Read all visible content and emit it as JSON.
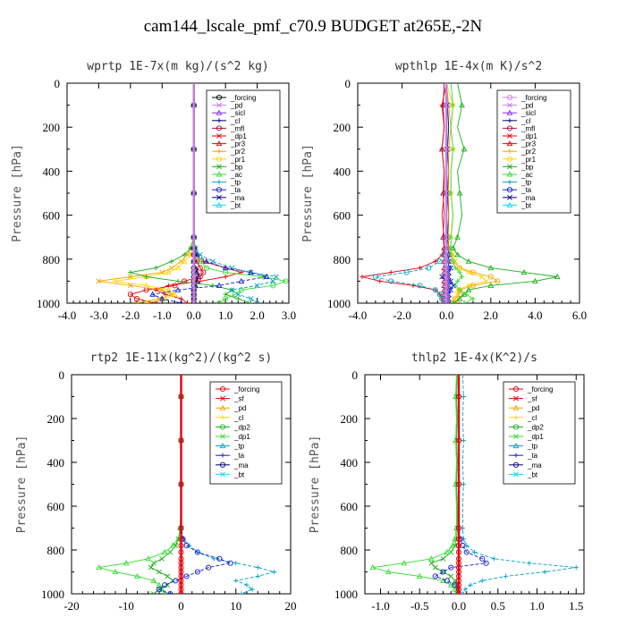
{
  "figure_title": "cam144_lscale_pmf_c70.9  BUDGET at265E,-2N",
  "colors": {
    "black": "#000000",
    "red": "#e8000b",
    "orange": "#f5a300",
    "yellow": "#ffd400",
    "green": "#1aaf1a",
    "lgreen": "#33dd33",
    "cyan": "#00a0c8",
    "blue": "#1020d0",
    "navy": "#000080",
    "aqua": "#10d8e8",
    "purple": "#8a2be2",
    "violet": "#c77fe0",
    "maroon": "#a01040",
    "teal": "#0aa0a0",
    "olive": "#a0a000"
  },
  "chart_data": [
    {
      "type": "line",
      "title": "wprtp   1E-7x(m kg)/(s^2 kg)",
      "ylabel": "Pressure [hPa]",
      "xlim": [
        -4,
        3
      ],
      "ylim": [
        1000,
        0
      ],
      "xticks": [
        -4,
        -3,
        -2,
        -1,
        0,
        1,
        2,
        3
      ],
      "xtick_labels": [
        "-4.0",
        "-3.0",
        "-2.0",
        "-1.0",
        "0.0",
        "1.0",
        "2.0",
        "3.0"
      ],
      "yticks": [
        0,
        200,
        400,
        600,
        800,
        1000
      ],
      "ytick_labels": [
        "0",
        "200",
        "400",
        "600",
        "800",
        "1000"
      ],
      "legend": [
        "_forcing",
        "_pd",
        "_sicl",
        "_cl",
        "_mfl",
        "_dp1",
        "_pr3",
        "_pr2",
        "_pr1",
        "_bp",
        "_ac",
        "_tp",
        "_ta",
        "_ma",
        "_bt"
      ],
      "legend_colors": [
        "black",
        "violet",
        "purple",
        "navy",
        "maroon",
        "red",
        "red",
        "orange",
        "yellow",
        "green",
        "lgreen",
        "cyan",
        "blue",
        "navy",
        "aqua"
      ],
      "p": [
        0,
        100,
        200,
        300,
        400,
        500,
        600,
        700,
        750,
        780,
        810,
        840,
        860,
        880,
        900,
        920,
        940,
        960,
        980,
        1000
      ],
      "series": [
        {
          "name": "_forcing",
          "color": "black",
          "values": [
            0,
            0,
            0,
            0,
            0,
            0,
            0,
            0,
            0,
            0,
            0,
            0,
            0,
            0,
            0,
            0,
            0,
            0,
            0,
            0
          ]
        },
        {
          "name": "_pd",
          "color": "violet",
          "values": [
            0,
            0,
            0,
            0,
            0,
            0,
            0,
            0,
            0,
            0,
            0,
            0,
            0,
            0,
            0,
            0,
            0,
            0,
            0,
            0
          ]
        },
        {
          "name": "_cl",
          "color": "navy",
          "values": [
            0,
            0,
            0,
            0,
            0,
            0,
            0,
            0,
            0,
            0,
            0,
            0.05,
            0.1,
            0.15,
            0.1,
            0.05,
            0,
            0,
            0,
            0
          ]
        },
        {
          "name": "_dp1",
          "color": "red",
          "values": [
            0,
            0,
            0,
            0,
            0,
            0,
            0,
            0,
            0,
            0.05,
            0.3,
            1.0,
            1.5,
            1.0,
            0.2,
            -0.8,
            -1.2,
            -0.9,
            -0.4,
            -0.2
          ]
        },
        {
          "name": "_pr3",
          "color": "red",
          "values": [
            0,
            0,
            0,
            0,
            0,
            0,
            0,
            0,
            0,
            0.02,
            0.1,
            0.2,
            0.3,
            0.2,
            -0.3,
            -0.6,
            -1.5,
            -2.0,
            -1.8,
            -1.2
          ]
        },
        {
          "name": "_pr2",
          "color": "orange",
          "values": [
            0,
            0,
            0,
            0,
            0,
            0,
            0,
            0,
            -0.1,
            -0.2,
            -0.4,
            -0.7,
            -1.0,
            -2.0,
            -3.0,
            -2.0,
            -1.0,
            -0.7,
            -1.1,
            -1.8
          ]
        },
        {
          "name": "_pr1",
          "color": "yellow",
          "values": [
            0,
            0,
            0,
            0,
            0,
            0,
            0,
            0,
            -0.05,
            -0.1,
            -0.3,
            -0.5,
            -0.8,
            -1.5,
            -2.5,
            -1.5,
            -0.8,
            -0.6,
            -0.9,
            -1.5
          ]
        },
        {
          "name": "_bp",
          "color": "green",
          "values": [
            0,
            0,
            0,
            0,
            0,
            0,
            0,
            0,
            -0.1,
            -0.3,
            -0.7,
            -1.2,
            -2.0,
            -1.5,
            -0.5,
            0.6,
            1.2,
            1.0,
            1.4,
            1.8
          ]
        },
        {
          "name": "_ac",
          "color": "lgreen",
          "values": [
            0,
            0,
            0,
            0,
            0,
            0,
            0,
            0,
            0.05,
            0.1,
            0.2,
            0.4,
            1.0,
            2.2,
            2.9,
            2.5,
            1.5,
            1.3,
            1.0,
            0.8
          ]
        },
        {
          "name": "_tp",
          "color": "cyan",
          "values": [
            0,
            0,
            0,
            0,
            0,
            0,
            0,
            0,
            0.05,
            0.2,
            0.6,
            1.2,
            1.8,
            2.6,
            2.5,
            2.0,
            1.2,
            1.4,
            1.8,
            2.0
          ]
        },
        {
          "name": "_ta",
          "color": "blue",
          "values": [
            0,
            0,
            0,
            0,
            0,
            0,
            0,
            0,
            0,
            0.1,
            0.4,
            1.0,
            1.8,
            2.3,
            1.5,
            0.8,
            -0.5,
            -1.3,
            -1.0,
            -0.4
          ]
        }
      ]
    },
    {
      "type": "line",
      "title": "wpthlp   1E-4x(m K)/s^2",
      "ylabel": "Pressure [hPa]",
      "xlim": [
        -4,
        6
      ],
      "ylim": [
        1000,
        0
      ],
      "xticks": [
        -4,
        -2,
        0,
        2,
        4,
        6
      ],
      "xtick_labels": [
        "-4.0",
        "-2.0",
        "0.0",
        "2.0",
        "4.0",
        "6.0"
      ],
      "yticks": [
        0,
        200,
        400,
        600,
        800,
        1000
      ],
      "ytick_labels": [
        "0",
        "200",
        "400",
        "600",
        "800",
        "1000"
      ],
      "legend": [
        "_forcing",
        "_pd",
        "_sicl",
        "_cl",
        "_mfl",
        "_dp1",
        "_pr3",
        "_pr2",
        "_pr1",
        "_bp",
        "_ac",
        "_tp",
        "_ta",
        "_ma",
        "_bt"
      ],
      "legend_colors": [
        "violet",
        "violet",
        "purple",
        "navy",
        "maroon",
        "red",
        "red",
        "orange",
        "yellow",
        "green",
        "lgreen",
        "cyan",
        "blue",
        "navy",
        "aqua"
      ],
      "p": [
        0,
        100,
        200,
        300,
        400,
        500,
        600,
        700,
        750,
        780,
        810,
        840,
        860,
        880,
        900,
        920,
        940,
        960,
        980,
        1000
      ],
      "series": [
        {
          "name": "_forcing",
          "color": "violet",
          "values": [
            0,
            0,
            0,
            0,
            0,
            0,
            0,
            0,
            0,
            0,
            0,
            0,
            0,
            0,
            0,
            0,
            0,
            0,
            0,
            0
          ]
        },
        {
          "name": "_cl",
          "color": "navy",
          "values": [
            0,
            0.05,
            0.1,
            0.05,
            0.1,
            0.05,
            0.1,
            0.05,
            0.1,
            0.1,
            0.1,
            0.1,
            0.1,
            0.1,
            0.1,
            0.1,
            0.1,
            0.1,
            0.1,
            0.1
          ]
        },
        {
          "name": "_mfl",
          "color": "maroon",
          "values": [
            -0.1,
            -0.15,
            -0.1,
            -0.2,
            -0.1,
            -0.15,
            -0.1,
            -0.15,
            -0.1,
            -0.1,
            -0.1,
            -0.1,
            -0.1,
            -0.1,
            -0.1,
            -0.1,
            -0.1,
            -0.1,
            -0.1,
            -0.1
          ]
        },
        {
          "name": "_dp1",
          "color": "red",
          "values": [
            0,
            -0.2,
            -0.1,
            -0.2,
            -0.1,
            -0.1,
            -0.2,
            -0.1,
            -0.1,
            -0.2,
            -0.5,
            -1.2,
            -2.5,
            -3.8,
            -3.0,
            -1.5,
            -0.5,
            -0.3,
            -0.2,
            -0.2
          ]
        },
        {
          "name": "_pr2",
          "color": "orange",
          "values": [
            0,
            0.1,
            0.2,
            0.1,
            0.1,
            0.1,
            0.1,
            0.1,
            0.1,
            0.2,
            0.3,
            0.6,
            1.2,
            2.0,
            2.3,
            1.2,
            0.6,
            0.6,
            0.4,
            0.5
          ]
        },
        {
          "name": "_pr1",
          "color": "yellow",
          "values": [
            0,
            0.3,
            0.2,
            0.3,
            0.2,
            0.2,
            0.3,
            0.2,
            0.2,
            0.3,
            0.4,
            0.6,
            1.0,
            1.6,
            1.8,
            1.0,
            0.5,
            0.5,
            0.3,
            0.3
          ]
        },
        {
          "name": "_bp",
          "color": "green",
          "values": [
            0.5,
            0.7,
            0.5,
            0.8,
            0.5,
            0.6,
            0.7,
            0.5,
            0.3,
            0.5,
            1.0,
            2.0,
            3.5,
            5.0,
            4.0,
            2.0,
            1.0,
            0.8,
            0.6,
            0.3
          ]
        },
        {
          "name": "_ac",
          "color": "lgreen",
          "values": [
            0.2,
            0.3,
            0.2,
            0.3,
            0.2,
            0.2,
            0.3,
            0.2,
            0.2,
            0.2,
            0.3,
            0.4,
            0.6,
            0.7,
            0.5,
            0.4,
            0.6,
            0.9,
            1.2,
            0.8
          ]
        },
        {
          "name": "_tp",
          "color": "cyan",
          "values": [
            0,
            0,
            0,
            0,
            0,
            0,
            0,
            0,
            0,
            -0.1,
            -0.3,
            -0.8,
            -1.8,
            -3.2,
            -2.5,
            -1.2,
            -0.5,
            -0.3,
            -0.2,
            -0.1
          ]
        },
        {
          "name": "_ta",
          "color": "blue",
          "values": [
            0,
            0,
            0,
            0,
            0,
            0,
            0,
            0,
            0,
            0.05,
            0.1,
            0.2,
            0.1,
            -0.2,
            0.2,
            0.3,
            0.2,
            0.1,
            0.1,
            0
          ]
        }
      ]
    },
    {
      "type": "line",
      "title": "rtp2   1E-11x(kg^2)/(kg^2 s)",
      "ylabel": "Pressure [hPa]",
      "xlim": [
        -20,
        20
      ],
      "ylim": [
        1000,
        0
      ],
      "xticks": [
        -20,
        -10,
        0,
        10,
        20
      ],
      "xtick_labels": [
        "-20",
        "-10",
        "0",
        "10",
        "20"
      ],
      "yticks": [
        0,
        200,
        400,
        600,
        800,
        1000
      ],
      "ytick_labels": [
        "0",
        "200",
        "400",
        "600",
        "800",
        "1000"
      ],
      "legend": [
        "_forcing",
        "_sf",
        "_pd",
        "_cl",
        "_dp2",
        "_dp1",
        "_tp",
        "_ta",
        "_ma",
        "_bt"
      ],
      "legend_colors": [
        "red",
        "red",
        "orange",
        "yellow",
        "green",
        "lgreen",
        "cyan",
        "blue",
        "navy",
        "aqua"
      ],
      "p": [
        0,
        100,
        200,
        300,
        400,
        500,
        600,
        700,
        750,
        780,
        810,
        840,
        860,
        880,
        900,
        920,
        940,
        960,
        980,
        1000
      ],
      "series": [
        {
          "name": "_forcing",
          "color": "red",
          "values": [
            0,
            0,
            0,
            0,
            0,
            0,
            0,
            0,
            0,
            0,
            0,
            0,
            0,
            0,
            0,
            0,
            0,
            0,
            0,
            0
          ]
        },
        {
          "name": "_dp2",
          "color": "green",
          "values": [
            0,
            0,
            0,
            0,
            0,
            0,
            0,
            0,
            -0.5,
            -1.0,
            -2.0,
            -3.5,
            -5.0,
            -5.5,
            -4.0,
            -2.5,
            -1.5,
            -2.5,
            -4.0,
            -5.0
          ]
        },
        {
          "name": "_dp1",
          "color": "lgreen",
          "values": [
            0,
            0,
            0,
            0,
            0,
            0,
            0,
            -0.2,
            -0.5,
            -1.5,
            -3.0,
            -6.0,
            -10.0,
            -15.0,
            -12.0,
            -8.0,
            -5.0,
            -4.0,
            -3.5,
            -3.0
          ]
        },
        {
          "name": "_tp",
          "color": "cyan",
          "values": [
            0,
            0,
            0,
            0,
            0,
            0,
            0,
            0,
            0.5,
            1.5,
            3.0,
            6.0,
            10.0,
            14.0,
            17.0,
            14.0,
            10.0,
            12.0,
            13.0,
            11.0
          ]
        },
        {
          "name": "_ta",
          "color": "blue",
          "values": [
            0,
            0,
            0,
            0,
            0,
            0,
            0,
            0,
            0.3,
            1.0,
            3.0,
            7.0,
            9.0,
            5.0,
            3.0,
            1.0,
            -1.0,
            -3.0,
            -4.0,
            -2.0
          ]
        }
      ]
    },
    {
      "type": "line",
      "title": "thlp2   1E-4x(K^2)/s",
      "ylabel": "Pressure [hPa]",
      "xlim": [
        -1.2,
        1.6
      ],
      "ylim": [
        1000,
        0
      ],
      "xticks": [
        -1.0,
        -0.5,
        0.0,
        0.5,
        1.0,
        1.5
      ],
      "xtick_labels": [
        "-1.0",
        "-0.5",
        "0.0",
        "0.5",
        "1.0",
        "1.5"
      ],
      "yticks": [
        0,
        200,
        400,
        600,
        800,
        1000
      ],
      "ytick_labels": [
        "0",
        "200",
        "400",
        "600",
        "800",
        "1000"
      ],
      "legend": [
        "_forcing",
        "_sf",
        "_pd",
        "_cl",
        "_dp2",
        "_dp1",
        "_tp",
        "_ta",
        "_ma",
        "_bt"
      ],
      "legend_colors": [
        "red",
        "red",
        "orange",
        "yellow",
        "green",
        "lgreen",
        "cyan",
        "blue",
        "navy",
        "aqua"
      ],
      "p": [
        0,
        100,
        200,
        300,
        400,
        500,
        600,
        700,
        750,
        780,
        810,
        840,
        860,
        880,
        900,
        920,
        940,
        960,
        980,
        1000
      ],
      "series": [
        {
          "name": "_forcing",
          "color": "red",
          "values": [
            0,
            0,
            0,
            0,
            0,
            0,
            0,
            0,
            0,
            0,
            0,
            0,
            0,
            0,
            0,
            0,
            0,
            0,
            0,
            0
          ]
        },
        {
          "name": "_dp2",
          "color": "green",
          "values": [
            -0.02,
            -0.03,
            -0.02,
            -0.03,
            -0.02,
            -0.03,
            -0.02,
            -0.02,
            -0.03,
            -0.05,
            -0.1,
            -0.2,
            -0.35,
            -0.3,
            -0.2,
            -0.1,
            -0.05,
            -0.03,
            -0.02,
            -0.02
          ]
        },
        {
          "name": "_dp1",
          "color": "lgreen",
          "values": [
            -0.03,
            -0.04,
            -0.03,
            -0.04,
            -0.03,
            -0.04,
            -0.03,
            -0.03,
            -0.05,
            -0.08,
            -0.15,
            -0.35,
            -0.7,
            -1.1,
            -0.9,
            -0.5,
            -0.2,
            -0.1,
            -0.05,
            -0.03
          ]
        },
        {
          "name": "_tp",
          "color": "cyan",
          "values": [
            0.05,
            0.06,
            0.05,
            0.06,
            0.05,
            0.06,
            0.05,
            0.05,
            0.06,
            0.1,
            0.2,
            0.45,
            0.9,
            1.5,
            1.1,
            0.6,
            0.3,
            0.15,
            0.08,
            0.05
          ]
        },
        {
          "name": "_ta",
          "color": "blue",
          "values": [
            0,
            0,
            0,
            0,
            0,
            0,
            0,
            0,
            0.02,
            0.05,
            0.1,
            0.3,
            0.35,
            -0.1,
            -0.2,
            -0.3,
            -0.15,
            -0.05,
            0,
            0
          ]
        }
      ]
    }
  ]
}
